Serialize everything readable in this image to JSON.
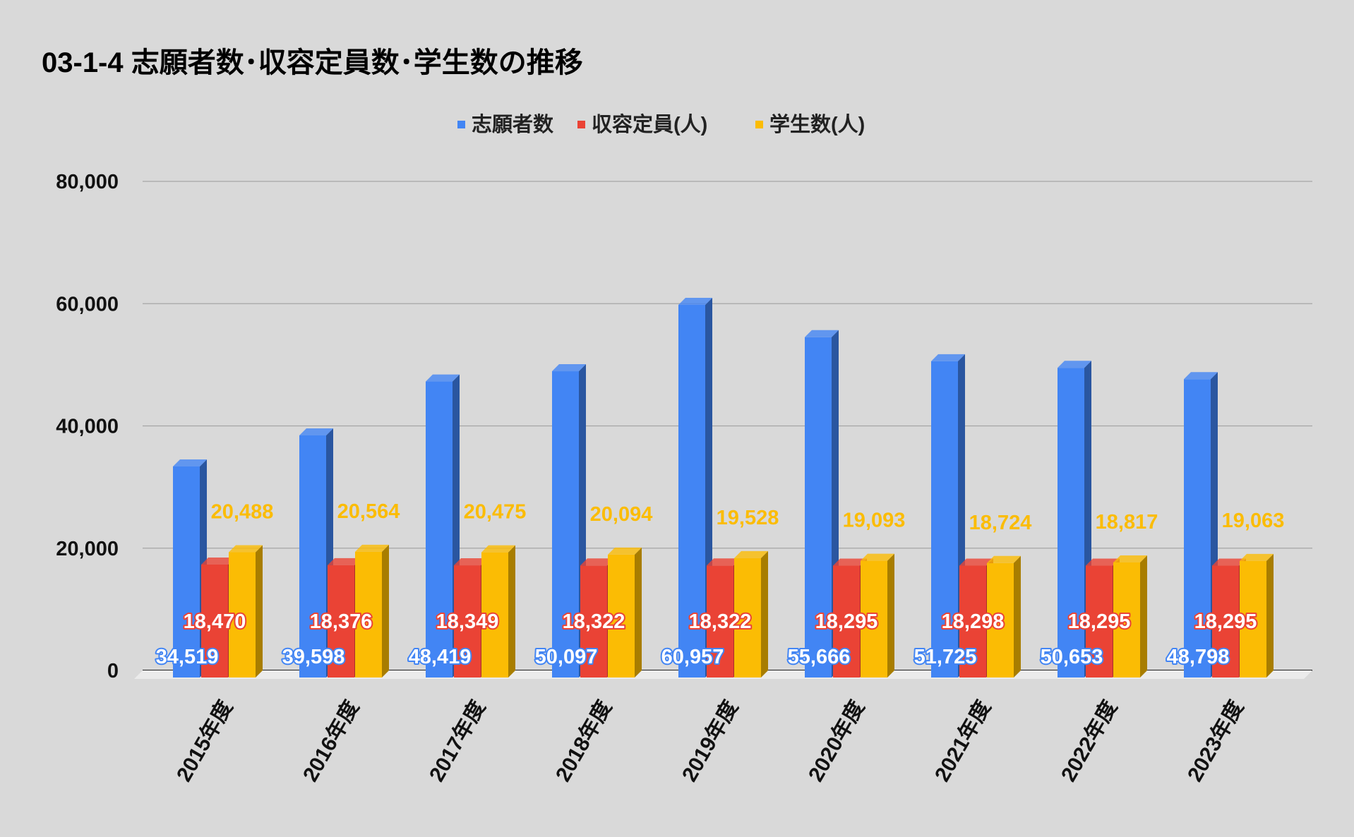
{
  "chart_data": {
    "type": "bar",
    "title": "03-1-4 志願者数･収容定員数･学生数の推移",
    "xlabel": "",
    "ylabel": "",
    "ylim": [
      0,
      80000
    ],
    "yticks": [
      0,
      20000,
      40000,
      60000,
      80000
    ],
    "ytick_labels": [
      "0",
      "20,000",
      "40,000",
      "60,000",
      "80,000"
    ],
    "grid": true,
    "legend_position": "top-center",
    "categories": [
      "2015年度",
      "2016年度",
      "2017年度",
      "2018年度",
      "2019年度",
      "2020年度",
      "2021年度",
      "2022年度",
      "2023年度"
    ],
    "series": [
      {
        "name": "志願者数",
        "color": "#4285f4",
        "side": "#2a56a0",
        "values": [
          34519,
          39598,
          48419,
          50097,
          60957,
          55666,
          51725,
          50653,
          48798
        ],
        "labels": [
          "34,519",
          "39,598",
          "48,419",
          "50,097",
          "60,957",
          "55,666",
          "51,725",
          "50,653",
          "48,798"
        ]
      },
      {
        "name": "収容定員(人)",
        "color": "#ea4335",
        "side": "#a8302a",
        "values": [
          18470,
          18376,
          18349,
          18322,
          18322,
          18295,
          18298,
          18295,
          18295
        ],
        "labels": [
          "18,470",
          "18,376",
          "18,349",
          "18,322",
          "18,322",
          "18,295",
          "18,298",
          "18,295",
          "18,295"
        ]
      },
      {
        "name": "学生数(人)",
        "color": "#fbbc04",
        "side": "#a87d00",
        "values": [
          20488,
          20564,
          20475,
          20094,
          19528,
          19093,
          18724,
          18817,
          19063
        ],
        "labels": [
          "20,488",
          "20,564",
          "20,475",
          "20,094",
          "19,528",
          "19,093",
          "18,724",
          "18,817",
          "19,063"
        ]
      }
    ]
  }
}
